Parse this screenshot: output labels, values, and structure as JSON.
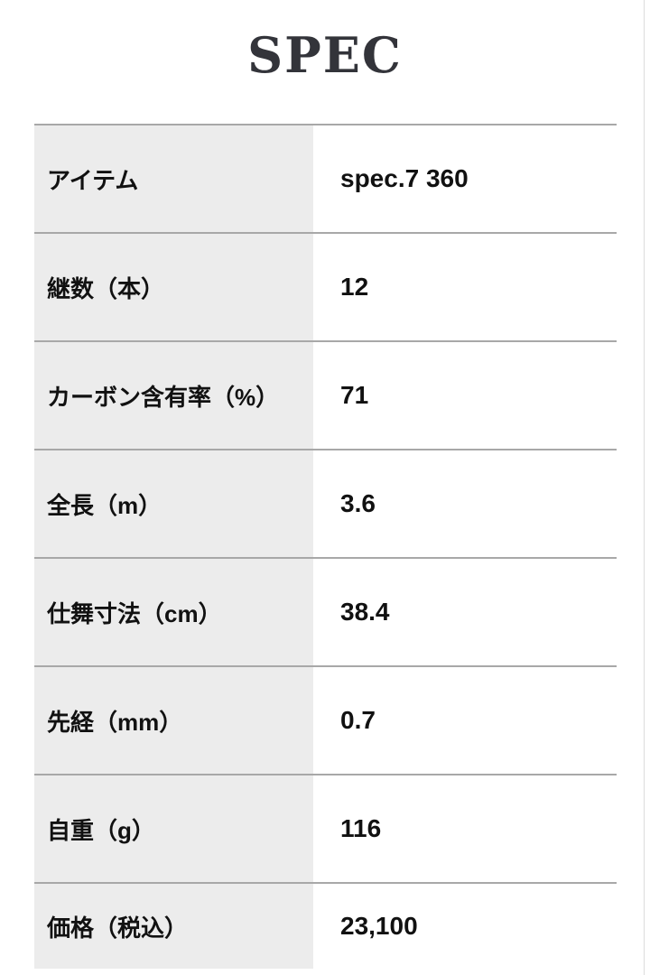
{
  "page": {
    "title": "SPEC"
  },
  "spec_table": {
    "rows": [
      {
        "label": "アイテム",
        "value": "spec.7 360"
      },
      {
        "label": "継数（本）",
        "value": "12"
      },
      {
        "label": "カーボン含有率（%）",
        "value": "71"
      },
      {
        "label": "全長（m）",
        "value": "3.6"
      },
      {
        "label": "仕舞寸法（cm）",
        "value": "38.4"
      },
      {
        "label": "先経（mm）",
        "value": "0.7"
      },
      {
        "label": "自重（g）",
        "value": "116"
      },
      {
        "label": "価格（税込）",
        "value": "23,100"
      }
    ]
  },
  "colors": {
    "title_text": "#33343a",
    "body_text": "#111111",
    "label_cell_bg": "#ececec",
    "row_border": "#a8a8a8",
    "page_edge_line": "#dddddd",
    "background": "#ffffff"
  }
}
